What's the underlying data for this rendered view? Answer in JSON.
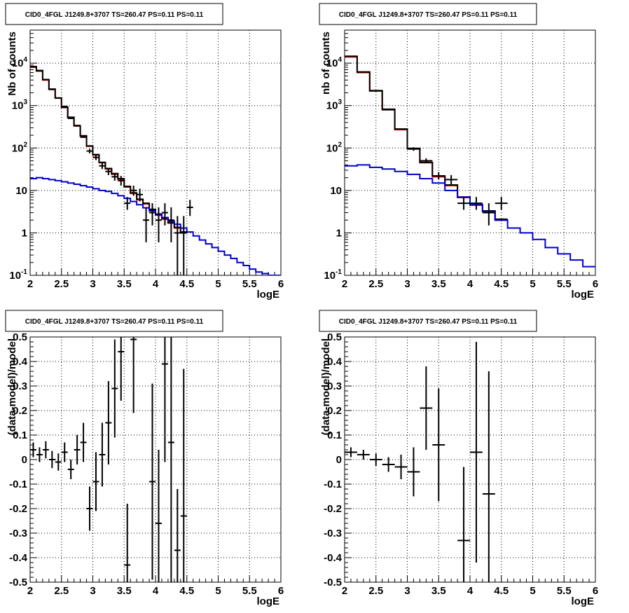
{
  "chart_data": [
    {
      "type": "line",
      "title": "CID0_4FGL J1249.8+3707 TS=260.47 PS=0.11 PS=0.11",
      "xlabel": "logE",
      "ylabel": "Nb of counts",
      "xlim": [
        2,
        6
      ],
      "ylim": [
        0.1,
        60000
      ],
      "yscale": "log",
      "grid": true,
      "xticks": [
        "2",
        "2.5",
        "3",
        "3.5",
        "4",
        "4.5",
        "5",
        "5.5",
        "6"
      ],
      "yticks": [
        {
          "base": "10",
          "exp": "-1",
          "value": 0.1
        },
        {
          "base": "1",
          "exp": "",
          "value": 1
        },
        {
          "base": "10",
          "exp": "",
          "value": 10
        },
        {
          "base": "10",
          "exp": "2",
          "value": 100
        },
        {
          "base": "10",
          "exp": "3",
          "value": 1000
        },
        {
          "base": "10",
          "exp": "4",
          "value": 10000
        }
      ],
      "series": [
        {
          "color": "#ff0000",
          "style": "step",
          "edges": [
            2.0,
            2.1,
            2.2,
            2.3,
            2.4,
            2.5,
            2.6,
            2.7,
            2.8,
            2.9,
            3.0,
            3.1,
            3.2,
            3.3,
            3.4,
            3.5,
            3.6,
            3.7,
            3.8,
            3.9,
            4.0,
            4.1,
            4.2,
            4.3,
            4.4,
            4.5
          ],
          "values": [
            8000,
            6500,
            4000,
            2400,
            1500,
            900,
            520,
            330,
            190,
            110,
            68,
            45,
            32,
            24,
            18,
            12,
            8.5,
            6.0,
            4.8,
            3.5,
            2.6,
            2.1,
            1.7,
            1.3,
            1.0
          ]
        },
        {
          "color": "#000000",
          "style": "step",
          "edges": [
            2.0,
            2.1,
            2.2,
            2.3,
            2.4,
            2.5,
            2.6,
            2.7,
            2.8,
            2.9,
            3.0,
            3.1,
            3.2,
            3.3,
            3.4,
            3.5,
            3.6,
            3.7,
            3.8,
            3.9,
            4.0,
            4.1,
            4.2,
            4.3,
            4.4,
            4.5
          ],
          "values": [
            8300,
            6700,
            4100,
            2450,
            1520,
            910,
            530,
            335,
            195,
            112,
            70,
            46,
            33,
            25,
            19,
            12.5,
            8.8,
            6.2,
            5.0,
            3.6,
            2.7,
            2.2,
            1.75,
            1.35,
            1.05
          ]
        },
        {
          "color": "#0000cc",
          "style": "step",
          "edges": [
            2.0,
            2.1,
            2.2,
            2.3,
            2.4,
            2.5,
            2.6,
            2.7,
            2.8,
            2.9,
            3.0,
            3.1,
            3.2,
            3.3,
            3.4,
            3.5,
            3.6,
            3.7,
            3.8,
            3.9,
            4.0,
            4.1,
            4.2,
            4.3,
            4.4,
            4.5,
            4.6,
            4.7,
            4.8,
            4.9,
            5.0,
            5.1,
            5.2,
            5.3,
            5.4,
            5.5,
            5.6,
            5.7,
            5.8,
            5.9,
            6.0
          ],
          "values": [
            19,
            20,
            19,
            18,
            17,
            16,
            15,
            14,
            13,
            12,
            11,
            10,
            9.5,
            8.5,
            7.5,
            6.5,
            5.5,
            4.6,
            3.9,
            3.3,
            2.8,
            2.3,
            1.9,
            1.6,
            1.3,
            1.05,
            0.85,
            0.68,
            0.55,
            0.45,
            0.37,
            0.3,
            0.25,
            0.2,
            0.17,
            0.14,
            0.12,
            0.11,
            0.1,
            0.1
          ]
        }
      ],
      "points": {
        "color": "#000000",
        "xerr": 0.05,
        "data": [
          {
            "x": 2.05,
            "y": 8200
          },
          {
            "x": 2.15,
            "y": 6600
          },
          {
            "x": 2.25,
            "y": 4100
          },
          {
            "x": 2.35,
            "y": 2400
          },
          {
            "x": 2.45,
            "y": 1500
          },
          {
            "x": 2.55,
            "y": 950
          },
          {
            "x": 2.65,
            "y": 500
          },
          {
            "x": 2.75,
            "y": 340
          },
          {
            "x": 2.85,
            "y": 180
          },
          {
            "x": 2.95,
            "y": 85,
            "ylo": 75,
            "yhi": 95
          },
          {
            "x": 3.05,
            "y": 60,
            "ylo": 52,
            "yhi": 68
          },
          {
            "x": 3.15,
            "y": 38,
            "ylo": 32,
            "yhi": 45
          },
          {
            "x": 3.25,
            "y": 28,
            "ylo": 23,
            "yhi": 34
          },
          {
            "x": 3.35,
            "y": 21,
            "ylo": 17,
            "yhi": 26
          },
          {
            "x": 3.45,
            "y": 17,
            "ylo": 13,
            "yhi": 22
          },
          {
            "x": 3.55,
            "y": 5,
            "ylo": 3.5,
            "yhi": 7
          },
          {
            "x": 3.65,
            "y": 10,
            "ylo": 7.5,
            "yhi": 13
          },
          {
            "x": 3.75,
            "y": 8,
            "ylo": 5.5,
            "yhi": 11
          },
          {
            "x": 3.85,
            "y": 2,
            "ylo": 0.6,
            "yhi": 4
          },
          {
            "x": 3.95,
            "y": 3,
            "ylo": 1.5,
            "yhi": 5
          },
          {
            "x": 4.05,
            "y": 2,
            "ylo": 0.6,
            "yhi": 4
          },
          {
            "x": 4.15,
            "y": 3,
            "ylo": 1.5,
            "yhi": 5
          },
          {
            "x": 4.25,
            "y": 2,
            "ylo": 0.6,
            "yhi": 4
          },
          {
            "x": 4.35,
            "y": 1,
            "ylo": 0.1,
            "yhi": 2.5
          },
          {
            "x": 4.45,
            "y": 1,
            "ylo": 0.1,
            "yhi": 2.5
          },
          {
            "x": 4.55,
            "y": 4,
            "ylo": 2.5,
            "yhi": 6
          }
        ]
      }
    },
    {
      "type": "line",
      "title": "CID0_4FGL J1249.8+3707 TS=260.47 PS=0.11 PS=0.11",
      "xlabel": "logE",
      "ylabel": "nb of counts",
      "xlim": [
        2,
        6
      ],
      "ylim": [
        0.1,
        60000
      ],
      "yscale": "log",
      "grid": true,
      "xticks": [
        "2",
        "2.5",
        "3",
        "3.5",
        "4",
        "4.5",
        "5",
        "5.5",
        "6"
      ],
      "yticks": [
        {
          "base": "10",
          "exp": "-1",
          "value": 0.1
        },
        {
          "base": "1",
          "exp": "",
          "value": 1
        },
        {
          "base": "10",
          "exp": "",
          "value": 10
        },
        {
          "base": "10",
          "exp": "2",
          "value": 100
        },
        {
          "base": "10",
          "exp": "3",
          "value": 1000
        },
        {
          "base": "10",
          "exp": "4",
          "value": 10000
        }
      ],
      "series": [
        {
          "color": "#ff0000",
          "style": "step",
          "edges": [
            2.0,
            2.2,
            2.4,
            2.6,
            2.8,
            3.0,
            3.2,
            3.4,
            3.6,
            3.8,
            4.0,
            4.2,
            4.4,
            4.6
          ],
          "values": [
            14000,
            6000,
            2200,
            800,
            270,
            95,
            45,
            21,
            13,
            6.8,
            4.5,
            3.2,
            2.0
          ]
        },
        {
          "color": "#000000",
          "style": "step",
          "edges": [
            2.0,
            2.2,
            2.4,
            2.6,
            2.8,
            3.0,
            3.2,
            3.4,
            3.6,
            3.8,
            4.0,
            4.2,
            4.4,
            4.6
          ],
          "values": [
            14500,
            6200,
            2250,
            820,
            280,
            98,
            46,
            22,
            13.5,
            7.0,
            4.6,
            3.3,
            2.1
          ]
        },
        {
          "color": "#0000cc",
          "style": "step",
          "edges": [
            2.0,
            2.2,
            2.4,
            2.6,
            2.8,
            3.0,
            3.2,
            3.4,
            3.6,
            3.8,
            4.0,
            4.2,
            4.4,
            4.6,
            4.8,
            5.0,
            5.2,
            5.4,
            5.6,
            5.8,
            6.0
          ],
          "values": [
            38,
            40,
            35,
            32,
            28,
            24,
            19,
            15,
            10,
            7,
            4.6,
            3.2,
            2.0,
            1.3,
            1.0,
            0.7,
            0.45,
            0.32,
            0.23,
            0.16
          ]
        }
      ],
      "points": {
        "color": "#000000",
        "xerr": 0.1,
        "data": [
          {
            "x": 2.1,
            "y": 14500
          },
          {
            "x": 2.3,
            "y": 6200
          },
          {
            "x": 2.5,
            "y": 2250
          },
          {
            "x": 2.7,
            "y": 800
          },
          {
            "x": 2.9,
            "y": 280
          },
          {
            "x": 3.1,
            "y": 95,
            "ylo": 86,
            "yhi": 104
          },
          {
            "x": 3.3,
            "y": 50,
            "ylo": 44,
            "yhi": 57
          },
          {
            "x": 3.5,
            "y": 22,
            "ylo": 18,
            "yhi": 27
          },
          {
            "x": 3.7,
            "y": 18,
            "ylo": 14,
            "yhi": 23
          },
          {
            "x": 3.9,
            "y": 5,
            "ylo": 3.5,
            "yhi": 7
          },
          {
            "x": 4.1,
            "y": 5,
            "ylo": 3.5,
            "yhi": 7
          },
          {
            "x": 4.3,
            "y": 3,
            "ylo": 1.5,
            "yhi": 5
          },
          {
            "x": 4.5,
            "y": 5,
            "ylo": 3.5,
            "yhi": 7
          }
        ]
      }
    },
    {
      "type": "scatter",
      "title": "CID0_4FGL J1249.8+3707 TS=260.47 PS=0.11 PS=0.11",
      "xlabel": "logE",
      "ylabel": "(data-model)/model",
      "xlim": [
        2,
        6
      ],
      "ylim": [
        -0.5,
        0.5
      ],
      "grid": true,
      "xticks": [
        "2",
        "2.5",
        "3",
        "3.5",
        "4",
        "4.5",
        "5",
        "5.5",
        "6"
      ],
      "yticks": [
        "-0.5",
        "-0.4",
        "-0.3",
        "-0.2",
        "-0.1",
        "0",
        "0.1",
        "0.2",
        "0.3",
        "0.4",
        "0.5"
      ],
      "points": {
        "color": "#000000",
        "xerr": 0.05,
        "data": [
          {
            "x": 2.05,
            "y": 0.04,
            "err": 0.03
          },
          {
            "x": 2.15,
            "y": 0.02,
            "err": 0.03
          },
          {
            "x": 2.25,
            "y": 0.04,
            "err": 0.035
          },
          {
            "x": 2.35,
            "y": 0.0,
            "err": 0.035
          },
          {
            "x": 2.45,
            "y": -0.01,
            "err": 0.035
          },
          {
            "x": 2.55,
            "y": 0.03,
            "err": 0.04
          },
          {
            "x": 2.65,
            "y": -0.04,
            "err": 0.04
          },
          {
            "x": 2.75,
            "y": 0.04,
            "err": 0.06
          },
          {
            "x": 2.85,
            "y": 0.07,
            "err": 0.08
          },
          {
            "x": 2.95,
            "y": -0.2,
            "err": 0.09
          },
          {
            "x": 3.05,
            "y": -0.09,
            "err": 0.12
          },
          {
            "x": 3.15,
            "y": 0.02,
            "err": 0.13
          },
          {
            "x": 3.25,
            "y": 0.15,
            "err": 0.17
          },
          {
            "x": 3.35,
            "y": 0.29,
            "err": 0.2
          },
          {
            "x": 3.45,
            "y": 0.44,
            "err": 0.2
          },
          {
            "x": 3.55,
            "y": -0.43,
            "err": 0.25
          },
          {
            "x": 3.65,
            "y": 0.49,
            "err": 0.3
          },
          {
            "x": 3.95,
            "y": -0.09,
            "err": 0.4
          },
          {
            "x": 4.05,
            "y": -0.26,
            "err": 0.3
          },
          {
            "x": 4.15,
            "y": 0.39,
            "err": 0.4
          },
          {
            "x": 4.25,
            "y": 0.07,
            "err": 0.6
          },
          {
            "x": 4.35,
            "y": -0.37,
            "err": 0.25
          },
          {
            "x": 4.45,
            "y": -0.23,
            "err": 0.6
          }
        ]
      }
    },
    {
      "type": "scatter",
      "title": "CID0_4FGL J1249.8+3707 TS=260.47 PS=0.11 PS=0.11",
      "xlabel": "logE",
      "ylabel": "(data-model)/model",
      "xlim": [
        2,
        6
      ],
      "ylim": [
        -0.5,
        0.5
      ],
      "grid": true,
      "xticks": [
        "2",
        "2.5",
        "3",
        "3.5",
        "4",
        "4.5",
        "5",
        "5.5",
        "6"
      ],
      "yticks": [
        "-0.5",
        "-0.4",
        "-0.3",
        "-0.2",
        "-0.1",
        "0",
        "0.1",
        "0.2",
        "0.3",
        "0.4",
        "0.5"
      ],
      "points": {
        "color": "#000000",
        "xerr": 0.1,
        "data": [
          {
            "x": 2.1,
            "y": 0.03,
            "err": 0.02
          },
          {
            "x": 2.3,
            "y": 0.02,
            "err": 0.02
          },
          {
            "x": 2.5,
            "y": 0.0,
            "err": 0.025
          },
          {
            "x": 2.7,
            "y": -0.02,
            "err": 0.03
          },
          {
            "x": 2.9,
            "y": -0.03,
            "err": 0.05
          },
          {
            "x": 3.1,
            "y": -0.05,
            "err": 0.1
          },
          {
            "x": 3.3,
            "y": 0.21,
            "err": 0.17
          },
          {
            "x": 3.5,
            "y": 0.06,
            "err": 0.23
          },
          {
            "x": 3.9,
            "y": -0.33,
            "err": 0.3
          },
          {
            "x": 4.1,
            "y": 0.03,
            "err": 0.45
          },
          {
            "x": 4.3,
            "y": -0.14,
            "err": 0.5
          }
        ]
      }
    }
  ]
}
